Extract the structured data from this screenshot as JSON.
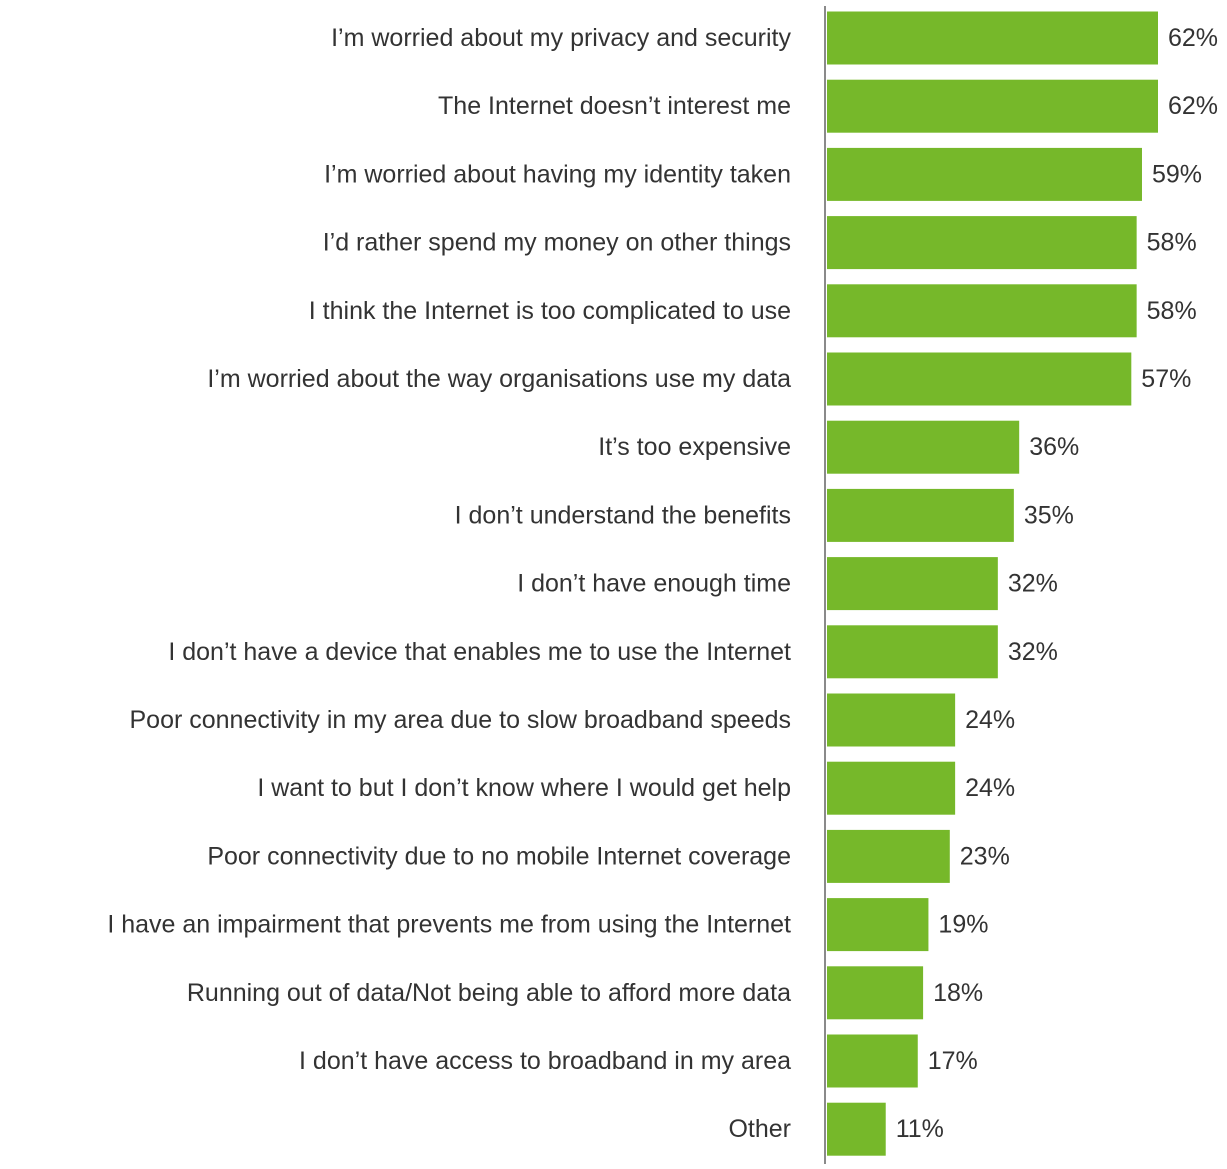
{
  "colors": {
    "bar": "#76b82a",
    "text": "#333333",
    "axis": "#8a8a8a",
    "background": "#ffffff"
  },
  "chart_data": {
    "type": "bar",
    "orientation": "horizontal",
    "title": "",
    "xlabel": "",
    "ylabel": "",
    "value_suffix": "%",
    "xlim": [
      0,
      62
    ],
    "grid": false,
    "legend": "none",
    "categories": [
      "I’m worried about my privacy and security",
      "The Internet doesn’t interest me",
      "I’m worried about having my identity taken",
      "I’d rather spend my money on other things",
      "I think the Internet is too complicated to use",
      "I’m worried about the way organisations use my data",
      "It’s too expensive",
      "I don’t understand the benefits",
      "I don’t have enough time",
      "I don’t have a device that enables me to use the Internet",
      "Poor connectivity in my area due to slow broadband speeds",
      "I want to but I don’t know where I would get help",
      "Poor connectivity due to no mobile Internet coverage",
      "I have an impairment that prevents me from using the Internet",
      "Running out of data/Not being able to afford more data",
      "I don’t have access to broadband in my area",
      "Other"
    ],
    "values": [
      62,
      62,
      59,
      58,
      58,
      57,
      36,
      35,
      32,
      32,
      24,
      24,
      23,
      19,
      18,
      17,
      11
    ]
  }
}
